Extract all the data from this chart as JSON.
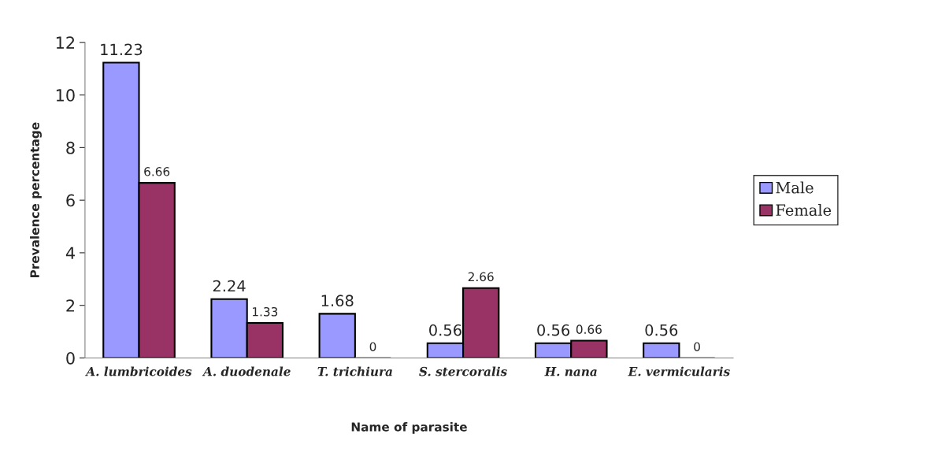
{
  "chart_data": {
    "type": "bar",
    "xlabel": "Name of parasite",
    "ylabel": "Prevalence percentage",
    "categories": [
      "A. lumbricoides",
      "A. duodenale",
      "T. trichiura",
      "S. stercoralis",
      "H. nana",
      "E. vermicularis"
    ],
    "series": [
      {
        "name": "Male",
        "color": "#9999ff",
        "values": [
          11.23,
          2.24,
          1.68,
          0.56,
          0.56,
          0.56
        ]
      },
      {
        "name": "Female",
        "color": "#993366",
        "values": [
          6.66,
          1.33,
          0,
          2.66,
          0.66,
          0
        ]
      }
    ],
    "ylim": [
      0,
      12
    ],
    "yticks": [
      0,
      2,
      4,
      6,
      8,
      10,
      12
    ],
    "data_labels": true,
    "grid": false,
    "legend": "right"
  }
}
